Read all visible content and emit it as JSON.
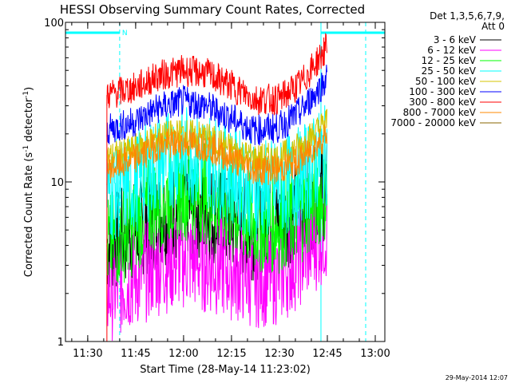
{
  "chart_data": {
    "type": "line",
    "title": "HESSI Observing Summary Count Rates, Corrected",
    "xlabel": "Start Time (28-May-14 11:23:02)",
    "ylabel": "Corrected Count Rate (s",
    "ylabel_sup": "-1",
    "ylabel_tail": " detector",
    "ylabel_tail_sup": "-1",
    "ylabel_end": ")",
    "y_scale": "log",
    "ylim": [
      1,
      100
    ],
    "y_ticks": [
      {
        "value": 1,
        "label": "1"
      },
      {
        "value": 10,
        "label": "10"
      },
      {
        "value": 100,
        "label": "100"
      }
    ],
    "xlim": [
      "11:23:02",
      "13:03:00"
    ],
    "x_ticks": [
      "11:30",
      "11:45",
      "12:00",
      "12:15",
      "12:30",
      "12:45",
      "13:00"
    ],
    "legend": {
      "placement": "right",
      "header_lines": [
        "Det 1,3,5,6,7,9,",
        "Att 0"
      ]
    },
    "footer_date": "29-May-2014 12:07",
    "annotations": {
      "orbit_marker": "N"
    },
    "data_span": [
      "11:36",
      "12:45"
    ],
    "series": [
      {
        "name": "3 - 6 keV",
        "color": "#000000",
        "t": [
          "11:36",
          "11:45",
          "11:52",
          "12:00",
          "12:07",
          "12:15",
          "12:22",
          "12:30",
          "12:37",
          "12:45"
        ],
        "values": [
          4,
          5,
          6,
          7,
          6.5,
          5.5,
          5,
          5.5,
          7,
          9
        ]
      },
      {
        "name": "6 - 12 keV",
        "color": "#ff00ff",
        "t": [
          "11:36",
          "11:45",
          "11:52",
          "12:00",
          "12:07",
          "12:15",
          "12:22",
          "12:30",
          "12:37",
          "12:45"
        ],
        "values": [
          2,
          2.5,
          3,
          3.3,
          3.1,
          2.8,
          2.5,
          2.6,
          3.5,
          5
        ]
      },
      {
        "name": "12 - 25 keV",
        "color": "#00ff00",
        "t": [
          "11:36",
          "11:45",
          "11:52",
          "12:00",
          "12:07",
          "12:15",
          "12:22",
          "12:30",
          "12:37",
          "12:45"
        ],
        "values": [
          4,
          5.5,
          8,
          9,
          8.5,
          7,
          5.5,
          5.5,
          6.5,
          9
        ]
      },
      {
        "name": "25 - 50 keV",
        "color": "#00ffff",
        "t": [
          "11:36",
          "11:45",
          "11:52",
          "12:00",
          "12:07",
          "12:15",
          "12:22",
          "12:30",
          "12:37",
          "12:45"
        ],
        "values": [
          8.5,
          10,
          13,
          15,
          14,
          11,
          9,
          9,
          11,
          15
        ]
      },
      {
        "name": "50 - 100 keV",
        "color": "#d4c400",
        "t": [
          "11:36",
          "11:45",
          "11:52",
          "12:00",
          "12:07",
          "12:15",
          "12:22",
          "12:30",
          "12:37",
          "12:45"
        ],
        "values": [
          14,
          16,
          19,
          20,
          19,
          16,
          14,
          14,
          17,
          24
        ]
      },
      {
        "name": "100 - 300 keV",
        "color": "#0000ff",
        "t": [
          "11:36",
          "11:45",
          "11:52",
          "12:00",
          "12:07",
          "12:15",
          "12:22",
          "12:30",
          "12:37",
          "12:45"
        ],
        "values": [
          21,
          24,
          29,
          32,
          30,
          25,
          21,
          22,
          28,
          45
        ]
      },
      {
        "name": "300 - 800 keV",
        "color": "#ff0000",
        "t": [
          "11:36",
          "11:45",
          "11:52",
          "12:00",
          "12:07",
          "12:15",
          "12:22",
          "12:30",
          "12:37",
          "12:45"
        ],
        "values": [
          35,
          39,
          46,
          50,
          48,
          40,
          33,
          33,
          42,
          70
        ]
      },
      {
        "name": "800 - 7000 keV",
        "color": "#ff8800",
        "t": [
          "11:36",
          "11:45",
          "11:52",
          "12:00",
          "12:07",
          "12:15",
          "12:22",
          "12:30",
          "12:37",
          "12:45"
        ],
        "values": [
          12,
          14,
          17,
          17.5,
          17,
          14,
          12,
          12,
          14,
          20
        ]
      },
      {
        "name": "7000 - 20000 keV",
        "color": "#886600",
        "t": [],
        "values": []
      }
    ]
  }
}
